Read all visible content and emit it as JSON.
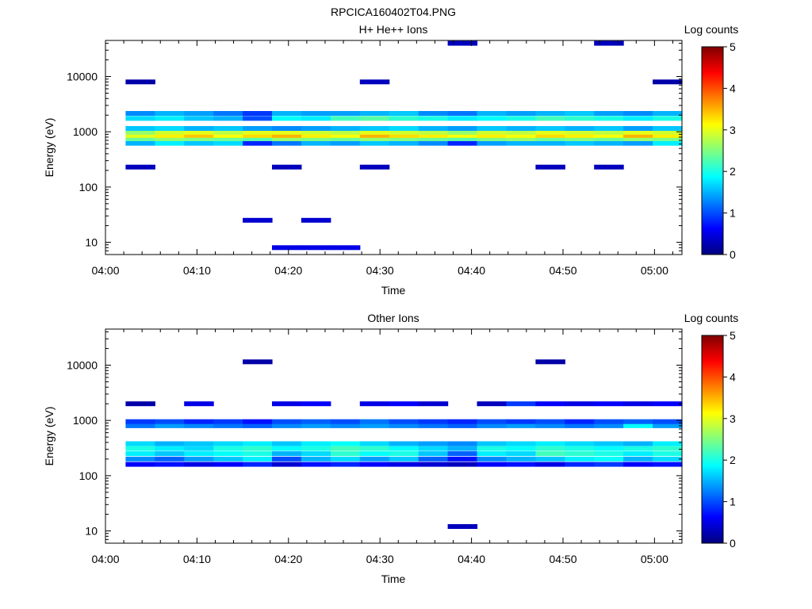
{
  "figure": {
    "title": "RPCICA160402T04.PNG"
  },
  "colorbar": {
    "label": "Log counts",
    "ticks": [
      "0",
      "1",
      "2",
      "3",
      "4",
      "5"
    ],
    "range": [
      0,
      5
    ]
  },
  "chart_data": [
    {
      "type": "heatmap",
      "title": "H+ He++ Ions",
      "xlabel": "Time",
      "ylabel": "Energy (eV)",
      "x_ticks": [
        "04:00",
        "04:10",
        "04:20",
        "04:30",
        "04:40",
        "04:50",
        "05:00"
      ],
      "y_ticks": [
        "10",
        "100",
        "1000",
        "10000"
      ],
      "x_range_minutes": [
        0,
        63
      ],
      "y_range_eV": [
        6,
        45000
      ],
      "y_scale": "log",
      "colorbar_range": [
        0,
        5
      ],
      "time_bins_minutes": [
        2.2,
        5.4,
        8.6,
        11.8,
        15.0,
        18.2,
        21.4,
        24.6,
        27.8,
        31.0,
        34.2,
        37.4,
        40.6,
        43.8,
        47.0,
        50.2,
        53.4,
        56.6,
        59.8,
        63.0
      ],
      "energy_bands_eV": [
        {
          "energy": 8,
          "counts": [
            0,
            0,
            0,
            0,
            0,
            0.5,
            0.5,
            0.5,
            0,
            0,
            0,
            0,
            0,
            0,
            0,
            0,
            0,
            0,
            0
          ]
        },
        {
          "energy": 25,
          "counts": [
            0,
            0,
            0,
            0,
            0.4,
            0,
            0.4,
            0,
            0,
            0,
            0,
            0,
            0,
            0,
            0,
            0,
            0,
            0,
            0
          ]
        },
        {
          "energy": 230,
          "counts": [
            0.3,
            0,
            0,
            0,
            0,
            0.3,
            0,
            0,
            0.3,
            0,
            0,
            0,
            0,
            0,
            0.3,
            0,
            0.3,
            0,
            0
          ]
        },
        {
          "energy": 620,
          "counts": [
            1.5,
            1.8,
            1.6,
            1.7,
            0.8,
            1.2,
            1.5,
            1.4,
            1.6,
            1.5,
            1.3,
            0.8,
            1.4,
            1.5,
            1.5,
            1.6,
            1.5,
            1.4,
            1.8
          ]
        },
        {
          "energy": 750,
          "counts": [
            2.4,
            2.6,
            2.5,
            2.4,
            2.3,
            2.6,
            2.5,
            2.4,
            2.6,
            2.5,
            2.4,
            2.3,
            2.5,
            2.6,
            2.4,
            2.5,
            2.4,
            2.6,
            2.5
          ]
        },
        {
          "energy": 860,
          "counts": [
            3.0,
            3.2,
            3.4,
            3.1,
            3.3,
            3.5,
            3.2,
            3.1,
            3.5,
            3.3,
            3.2,
            3.1,
            3.2,
            3.1,
            3.3,
            3.2,
            3.1,
            3.5,
            3.2
          ]
        },
        {
          "energy": 980,
          "counts": [
            2.6,
            2.9,
            3.0,
            2.8,
            3.0,
            3.0,
            2.9,
            2.8,
            3.0,
            2.9,
            2.8,
            2.6,
            2.9,
            2.8,
            3.0,
            2.9,
            2.8,
            3.0,
            2.9
          ]
        },
        {
          "energy": 1150,
          "counts": [
            1.6,
            1.7,
            1.5,
            1.6,
            1.4,
            1.3,
            1.4,
            1.5,
            1.6,
            1.7,
            1.5,
            1.4,
            1.6,
            1.5,
            1.6,
            1.5,
            1.6,
            1.4,
            1.6
          ]
        },
        {
          "energy": 1750,
          "counts": [
            1.7,
            1.8,
            1.6,
            1.5,
            1.0,
            1.9,
            1.8,
            2.2,
            2.3,
            2.1,
            2.0,
            1.8,
            1.9,
            2.0,
            2.2,
            2.1,
            2.0,
            1.8,
            2.0
          ]
        },
        {
          "energy": 2150,
          "counts": [
            1.3,
            1.5,
            1.4,
            1.2,
            0.9,
            1.5,
            1.4,
            1.4,
            1.5,
            1.6,
            1.3,
            1.2,
            1.5,
            1.4,
            1.5,
            1.6,
            1.4,
            1.3,
            1.5
          ]
        },
        {
          "energy": 8000,
          "counts": [
            0.2,
            0,
            0,
            0,
            0,
            0,
            0,
            0,
            0.3,
            0,
            0,
            0,
            0,
            0,
            0,
            0,
            0,
            0,
            0.2
          ]
        },
        {
          "energy": 40000,
          "counts": [
            0,
            0,
            0,
            0,
            0,
            0,
            0,
            0,
            0,
            0,
            0,
            0.3,
            0,
            0,
            0,
            0,
            0.3,
            0,
            0
          ]
        }
      ]
    },
    {
      "type": "heatmap",
      "title": "Other Ions",
      "xlabel": "Time",
      "ylabel": "Energy (eV)",
      "x_ticks": [
        "04:00",
        "04:10",
        "04:20",
        "04:30",
        "04:40",
        "04:50",
        "05:00"
      ],
      "y_ticks": [
        "10",
        "100",
        "1000",
        "10000"
      ],
      "x_range_minutes": [
        0,
        63
      ],
      "y_range_eV": [
        6,
        45000
      ],
      "y_scale": "log",
      "colorbar_range": [
        0,
        5
      ],
      "time_bins_minutes": [
        2.2,
        5.4,
        8.6,
        11.8,
        15.0,
        18.2,
        21.4,
        24.6,
        27.8,
        31.0,
        34.2,
        37.4,
        40.6,
        43.8,
        47.0,
        50.2,
        53.4,
        56.6,
        59.8,
        63.0
      ],
      "energy_bands_eV": [
        {
          "energy": 12,
          "counts": [
            0,
            0,
            0,
            0,
            0,
            0,
            0,
            0,
            0,
            0,
            0,
            0.3,
            0,
            0,
            0,
            0,
            0,
            0,
            0
          ]
        },
        {
          "energy": 160,
          "counts": [
            0.6,
            0.7,
            0.5,
            0.6,
            0.8,
            0.4,
            0.7,
            0.8,
            0.6,
            0.5,
            0.4,
            0.3,
            0.6,
            0.7,
            0.5,
            0.8,
            0.9,
            0.6,
            0.7
          ]
        },
        {
          "energy": 200,
          "counts": [
            1.3,
            1.1,
            1.4,
            1.6,
            1.8,
            1.0,
            1.5,
            1.7,
            1.4,
            1.6,
            1.1,
            0.7,
            1.3,
            1.5,
            1.6,
            1.8,
            1.9,
            1.5,
            1.7
          ]
        },
        {
          "energy": 250,
          "counts": [
            1.8,
            1.6,
            1.8,
            1.9,
            2.0,
            1.5,
            1.7,
            2.1,
            1.9,
            2.0,
            1.6,
            1.1,
            1.8,
            1.7,
            2.2,
            2.1,
            2.0,
            1.8,
            2.0
          ]
        },
        {
          "energy": 310,
          "counts": [
            2.0,
            1.8,
            1.7,
            2.0,
            2.1,
            1.9,
            2.0,
            2.2,
            2.1,
            1.9,
            1.7,
            1.5,
            2.0,
            1.9,
            2.1,
            2.0,
            1.9,
            2.0,
            2.1
          ]
        },
        {
          "energy": 380,
          "counts": [
            1.7,
            1.5,
            1.6,
            1.7,
            1.8,
            1.6,
            1.8,
            1.9,
            1.7,
            1.5,
            1.4,
            1.3,
            1.6,
            1.7,
            1.8,
            1.7,
            1.6,
            1.5,
            1.8
          ]
        },
        {
          "energy": 800,
          "counts": [
            1.2,
            1.4,
            1.3,
            1.2,
            1.1,
            1.3,
            1.4,
            1.3,
            1.4,
            1.3,
            1.2,
            1.1,
            1.3,
            1.4,
            1.3,
            1.2,
            1.3,
            1.9,
            1.4
          ]
        },
        {
          "energy": 950,
          "counts": [
            0.9,
            1.0,
            0.8,
            0.9,
            0.7,
            1.0,
            1.1,
            1.0,
            1.2,
            1.0,
            0.9,
            0.8,
            1.0,
            0.9,
            1.0,
            0.8,
            1.0,
            1.1,
            1.0
          ]
        },
        {
          "energy": 2000,
          "counts": [
            0.2,
            0,
            0.5,
            0,
            0,
            0.5,
            0.6,
            0,
            0.5,
            0.6,
            0.4,
            0,
            0.3,
            0.9,
            0.6,
            0.5,
            0.6,
            0.5,
            0.6
          ]
        },
        {
          "energy": 11500,
          "counts": [
            0,
            0,
            0,
            0,
            0.2,
            0,
            0,
            0,
            0,
            0,
            0,
            0,
            0,
            0,
            0.2,
            0,
            0,
            0,
            0
          ]
        }
      ]
    }
  ]
}
